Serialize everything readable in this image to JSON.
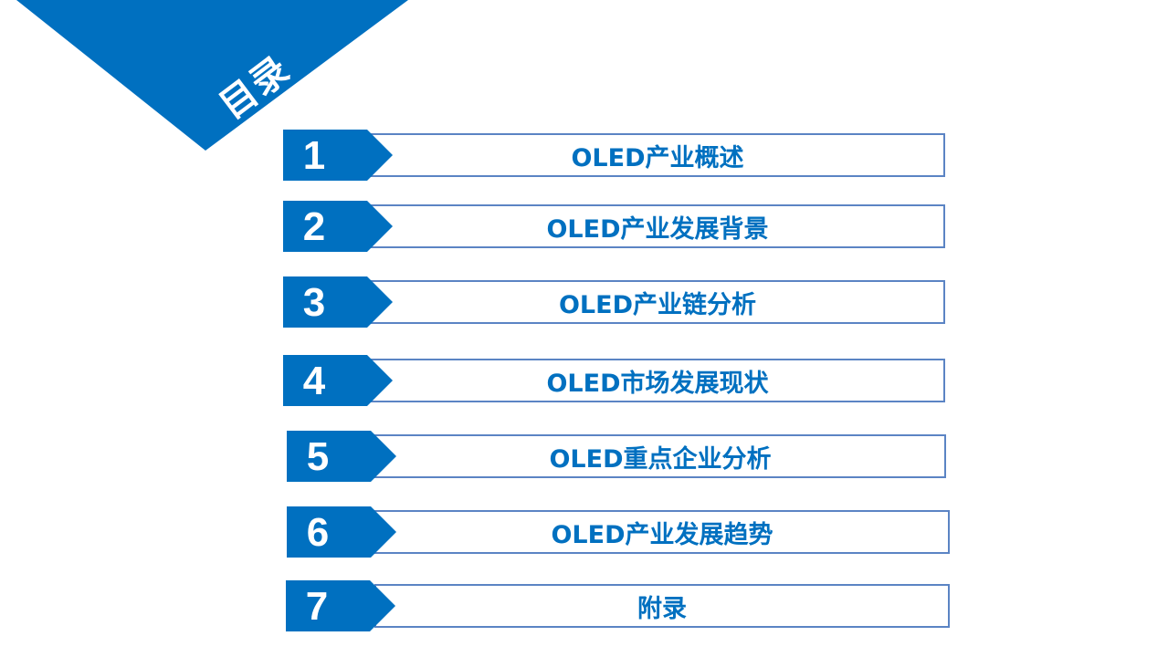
{
  "title": "目录",
  "colors": {
    "accent": "#0070c0",
    "border": "#5b84c4"
  },
  "items": [
    {
      "number": "1",
      "label": "OLED产业概述"
    },
    {
      "number": "2",
      "label": "OLED产业发展背景"
    },
    {
      "number": "3",
      "label": "OLED产业链分析"
    },
    {
      "number": "4",
      "label": "OLED市场发展现状"
    },
    {
      "number": "5",
      "label": "OLED重点企业分析"
    },
    {
      "number": "6",
      "label": "OLED产业发展趋势"
    },
    {
      "number": "7",
      "label": "附录"
    }
  ]
}
